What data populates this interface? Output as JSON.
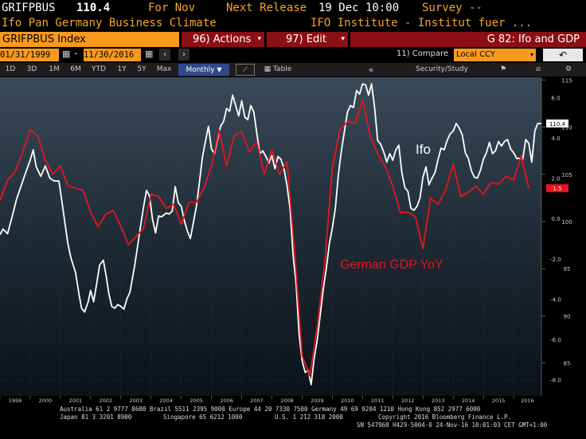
{
  "header": {
    "ticker": "GRIFPBUS",
    "value": "110.4",
    "for_label": "For Nov",
    "next_release_label": "Next Release",
    "next_release_value": "19 Dec 10:00",
    "survey_label": "Survey --",
    "description": "Ifo Pan Germany Business Climate",
    "source": "IFO Institute - Institut fuer ..."
  },
  "toolbar": {
    "index_label": "GRIFPBUS Index",
    "actions_label": "96) Actions",
    "edit_label": "97) Edit",
    "chart_name": "G 82: Ifo and GDP",
    "date_from": "01/31/1999",
    "date_to": "11/30/2016",
    "compare_label": "11) Compare",
    "currency_label": "Local CCY"
  },
  "range_buttons": [
    "1D",
    "3D",
    "1M",
    "6M",
    "YTD",
    "1Y",
    "5Y",
    "Max"
  ],
  "period_label": "Monthly",
  "table_label": "Table",
  "security_study_label": "Security/Study",
  "chart_data": {
    "type": "line",
    "title": "Ifo and GDP",
    "x_axis": {
      "range": [
        1999.0,
        2016.92
      ],
      "tick_labels": [
        "1999",
        "2000",
        "2001",
        "2002",
        "2003",
        "2004",
        "2005",
        "2006",
        "2007",
        "2008",
        "2009",
        "2010",
        "2011",
        "2012",
        "2013",
        "2014",
        "2015",
        "2016"
      ]
    },
    "left_axis": {
      "range": [
        -8.8,
        7.0
      ],
      "ticks": [
        -8.0,
        -6.0,
        -4.0,
        -2.0,
        0.0,
        2.0,
        4.0,
        6.0
      ],
      "tick_labels": [
        "-8.0",
        "-6.0",
        "-4.0",
        "-2.0",
        "0.0",
        "2.0",
        "4.0",
        "6.0"
      ]
    },
    "right_axis": {
      "range": [
        81.5,
        115.3
      ],
      "ticks": [
        85,
        90,
        95,
        100,
        105,
        110,
        115
      ],
      "tick_labels": [
        "85",
        "90",
        "95",
        "100",
        "105",
        "110",
        "115"
      ]
    },
    "series": [
      {
        "name": "Ifo",
        "axis": "right",
        "color": "#ffffff",
        "last_value": "110.4",
        "points": [
          [
            1999.0,
            98.6
          ],
          [
            1999.1,
            99.2
          ],
          [
            1999.25,
            98.7
          ],
          [
            1999.4,
            100.5
          ],
          [
            1999.55,
            102.4
          ],
          [
            1999.7,
            103.8
          ],
          [
            1999.85,
            105.2
          ],
          [
            2000.0,
            106.5
          ],
          [
            2000.1,
            107.6
          ],
          [
            2000.2,
            105.8
          ],
          [
            2000.35,
            104.8
          ],
          [
            2000.5,
            105.9
          ],
          [
            2000.65,
            104.6
          ],
          [
            2000.8,
            104.3
          ],
          [
            2000.95,
            104.3
          ],
          [
            2001.05,
            102.1
          ],
          [
            2001.15,
            99.8
          ],
          [
            2001.25,
            97.6
          ],
          [
            2001.35,
            96.1
          ],
          [
            2001.5,
            94.6
          ],
          [
            2001.62,
            92.2
          ],
          [
            2001.7,
            90.8
          ],
          [
            2001.8,
            90.4
          ],
          [
            2001.92,
            91.5
          ],
          [
            2002.0,
            92.7
          ],
          [
            2002.1,
            91.5
          ],
          [
            2002.2,
            93.4
          ],
          [
            2002.3,
            95.4
          ],
          [
            2002.42,
            95.9
          ],
          [
            2002.52,
            94.1
          ],
          [
            2002.6,
            92.4
          ],
          [
            2002.7,
            91.0
          ],
          [
            2002.8,
            90.8
          ],
          [
            2002.9,
            91.2
          ],
          [
            2003.0,
            91.0
          ],
          [
            2003.1,
            90.7
          ],
          [
            2003.2,
            91.8
          ],
          [
            2003.3,
            92.5
          ],
          [
            2003.45,
            95.2
          ],
          [
            2003.55,
            97.3
          ],
          [
            2003.65,
            99.5
          ],
          [
            2003.75,
            101.5
          ],
          [
            2003.85,
            103.3
          ],
          [
            2003.95,
            102.7
          ],
          [
            2004.05,
            100.2
          ],
          [
            2004.15,
            98.8
          ],
          [
            2004.25,
            100.6
          ],
          [
            2004.35,
            100.5
          ],
          [
            2004.5,
            100.9
          ],
          [
            2004.6,
            100.8
          ],
          [
            2004.7,
            101.1
          ],
          [
            2004.8,
            103.7
          ],
          [
            2004.9,
            102.0
          ],
          [
            2005.0,
            101.6
          ],
          [
            2005.1,
            100.1
          ],
          [
            2005.2,
            99.0
          ],
          [
            2005.3,
            98.2
          ],
          [
            2005.4,
            99.9
          ],
          [
            2005.5,
            101.6
          ],
          [
            2005.6,
            104.1
          ],
          [
            2005.7,
            106.8
          ],
          [
            2005.8,
            108.5
          ],
          [
            2005.9,
            110.1
          ],
          [
            2006.0,
            107.7
          ],
          [
            2006.1,
            107.2
          ],
          [
            2006.2,
            108.7
          ],
          [
            2006.3,
            110.1
          ],
          [
            2006.4,
            110.6
          ],
          [
            2006.5,
            112.0
          ],
          [
            2006.6,
            111.7
          ],
          [
            2006.7,
            113.4
          ],
          [
            2006.8,
            112.3
          ],
          [
            2006.9,
            111.2
          ],
          [
            2007.0,
            112.8
          ],
          [
            2007.1,
            111.1
          ],
          [
            2007.2,
            110.8
          ],
          [
            2007.3,
            112.3
          ],
          [
            2007.4,
            111.6
          ],
          [
            2007.5,
            109.4
          ],
          [
            2007.6,
            107.2
          ],
          [
            2007.7,
            107.5
          ],
          [
            2007.8,
            106.9
          ],
          [
            2007.9,
            106.2
          ],
          [
            2008.0,
            107.0
          ],
          [
            2008.1,
            105.6
          ],
          [
            2008.2,
            106.9
          ],
          [
            2008.3,
            106.6
          ],
          [
            2008.4,
            105.6
          ],
          [
            2008.5,
            103.8
          ],
          [
            2008.6,
            101.4
          ],
          [
            2008.7,
            96.4
          ],
          [
            2008.8,
            93.4
          ],
          [
            2008.9,
            88.0
          ],
          [
            2009.0,
            85.2
          ],
          [
            2009.1,
            84.0
          ],
          [
            2009.2,
            84.2
          ],
          [
            2009.3,
            82.7
          ],
          [
            2009.4,
            85.5
          ],
          [
            2009.5,
            87.4
          ],
          [
            2009.6,
            90.1
          ],
          [
            2009.7,
            92.8
          ],
          [
            2009.8,
            95.0
          ],
          [
            2009.9,
            97.6
          ],
          [
            2010.0,
            99.3
          ],
          [
            2010.1,
            101.4
          ],
          [
            2010.2,
            105.0
          ],
          [
            2010.3,
            107.5
          ],
          [
            2010.4,
            109.6
          ],
          [
            2010.5,
            111.6
          ],
          [
            2010.6,
            112.3
          ],
          [
            2010.7,
            112.1
          ],
          [
            2010.8,
            113.9
          ],
          [
            2010.9,
            113.5
          ],
          [
            2011.0,
            114.6
          ],
          [
            2011.1,
            114.5
          ],
          [
            2011.2,
            113.4
          ],
          [
            2011.3,
            114.6
          ],
          [
            2011.4,
            112.1
          ],
          [
            2011.5,
            108.6
          ],
          [
            2011.6,
            108.2
          ],
          [
            2011.7,
            107.4
          ],
          [
            2011.8,
            106.3
          ],
          [
            2011.9,
            107.2
          ],
          [
            2012.0,
            106.5
          ],
          [
            2012.1,
            107.6
          ],
          [
            2012.2,
            108.1
          ],
          [
            2012.3,
            105.2
          ],
          [
            2012.4,
            103.6
          ],
          [
            2012.5,
            103.2
          ],
          [
            2012.6,
            101.4
          ],
          [
            2012.7,
            101.2
          ],
          [
            2012.8,
            101.6
          ],
          [
            2012.9,
            102.5
          ],
          [
            2013.0,
            104.7
          ],
          [
            2013.1,
            105.8
          ],
          [
            2013.2,
            103.9
          ],
          [
            2013.3,
            104.6
          ],
          [
            2013.4,
            105.2
          ],
          [
            2013.5,
            106.6
          ],
          [
            2013.6,
            107.8
          ],
          [
            2013.7,
            107.6
          ],
          [
            2013.8,
            108.6
          ],
          [
            2013.9,
            109.3
          ],
          [
            2014.0,
            109.6
          ],
          [
            2014.1,
            110.4
          ],
          [
            2014.2,
            109.9
          ],
          [
            2014.3,
            109.2
          ],
          [
            2014.4,
            107.3
          ],
          [
            2014.5,
            106.7
          ],
          [
            2014.6,
            105.4
          ],
          [
            2014.7,
            104.7
          ],
          [
            2014.8,
            104.6
          ],
          [
            2014.9,
            105.4
          ],
          [
            2015.0,
            106.6
          ],
          [
            2015.1,
            107.3
          ],
          [
            2015.2,
            108.4
          ],
          [
            2015.3,
            107.2
          ],
          [
            2015.4,
            107.5
          ],
          [
            2015.5,
            108.5
          ],
          [
            2015.6,
            108.0
          ],
          [
            2015.7,
            108.5
          ],
          [
            2015.8,
            108.7
          ],
          [
            2015.9,
            107.7
          ],
          [
            2016.0,
            107.3
          ],
          [
            2016.1,
            106.7
          ],
          [
            2016.2,
            106.7
          ],
          [
            2016.3,
            106.6
          ],
          [
            2016.4,
            108.7
          ],
          [
            2016.5,
            108.3
          ],
          [
            2016.6,
            106.3
          ],
          [
            2016.7,
            109.6
          ],
          [
            2016.8,
            110.4
          ],
          [
            2016.92,
            110.4
          ]
        ]
      },
      {
        "name": "German GDP YoY",
        "axis": "left",
        "color": "#e8141e",
        "last_value": "1.5",
        "points": [
          [
            1999.0,
            0.9
          ],
          [
            1999.25,
            1.9
          ],
          [
            1999.5,
            2.3
          ],
          [
            1999.75,
            3.3
          ],
          [
            2000.0,
            4.4
          ],
          [
            2000.25,
            4.1
          ],
          [
            2000.5,
            2.9
          ],
          [
            2000.75,
            2.2
          ],
          [
            2001.0,
            2.6
          ],
          [
            2001.25,
            1.6
          ],
          [
            2001.5,
            1.5
          ],
          [
            2001.75,
            1.4
          ],
          [
            2002.0,
            0.3
          ],
          [
            2002.25,
            -0.4
          ],
          [
            2002.5,
            0.2
          ],
          [
            2002.75,
            0.4
          ],
          [
            2003.0,
            -0.4
          ],
          [
            2003.25,
            -1.3
          ],
          [
            2003.5,
            -0.9
          ],
          [
            2003.75,
            -0.5
          ],
          [
            2004.0,
            1.2
          ],
          [
            2004.25,
            1.1
          ],
          [
            2004.5,
            0.5
          ],
          [
            2004.75,
            0.7
          ],
          [
            2005.0,
            -0.3
          ],
          [
            2005.25,
            0.8
          ],
          [
            2005.5,
            0.8
          ],
          [
            2005.75,
            1.5
          ],
          [
            2006.0,
            2.6
          ],
          [
            2006.25,
            4.4
          ],
          [
            2006.5,
            2.6
          ],
          [
            2006.75,
            4.1
          ],
          [
            2007.0,
            4.3
          ],
          [
            2007.25,
            3.3
          ],
          [
            2007.5,
            3.8
          ],
          [
            2007.75,
            2.2
          ],
          [
            2008.0,
            3.4
          ],
          [
            2008.25,
            2.2
          ],
          [
            2008.5,
            2.8
          ],
          [
            2008.75,
            -1.6
          ],
          [
            2009.0,
            -6.8
          ],
          [
            2009.25,
            -7.8
          ],
          [
            2009.5,
            -5.4
          ],
          [
            2009.75,
            -2.2
          ],
          [
            2010.0,
            2.5
          ],
          [
            2010.25,
            4.4
          ],
          [
            2010.5,
            4.8
          ],
          [
            2010.75,
            4.7
          ],
          [
            2011.0,
            5.9
          ],
          [
            2011.25,
            4.1
          ],
          [
            2011.5,
            3.2
          ],
          [
            2011.75,
            2.6
          ],
          [
            2012.0,
            1.6
          ],
          [
            2012.25,
            0.3
          ],
          [
            2012.5,
            0.3
          ],
          [
            2012.75,
            0.1
          ],
          [
            2013.0,
            -1.5
          ],
          [
            2013.25,
            1.0
          ],
          [
            2013.5,
            0.7
          ],
          [
            2013.75,
            1.4
          ],
          [
            2014.0,
            2.7
          ],
          [
            2014.25,
            1.1
          ],
          [
            2014.5,
            1.3
          ],
          [
            2014.75,
            1.6
          ],
          [
            2015.0,
            1.2
          ],
          [
            2015.25,
            1.8
          ],
          [
            2015.5,
            1.7
          ],
          [
            2015.75,
            2.1
          ],
          [
            2016.0,
            1.9
          ],
          [
            2016.25,
            3.1
          ],
          [
            2016.5,
            1.5
          ]
        ]
      }
    ],
    "annotations": {
      "ifo_label": "Ifo",
      "gdp_label": "German GDP YoY"
    }
  },
  "footer": {
    "line1": "Australia 61 2 9777 8600 Brazil 5511 2395 9000 Europe 44 20 7330 7500 Germany 49 69 9204 1210 Hong Kong 852 2977 6000",
    "line2a": "Japan 81 3 3201 8900",
    "line2b": "Singapore 65 6212 1000",
    "line2c": "U.S. 1 212 318 2000",
    "line2d": "Copyright 2016 Bloomberg Finance L.P.",
    "line3": "SN 547968 H429-5004-0 24-Nov-16 10:01:03 CET  GMT+1:00"
  }
}
